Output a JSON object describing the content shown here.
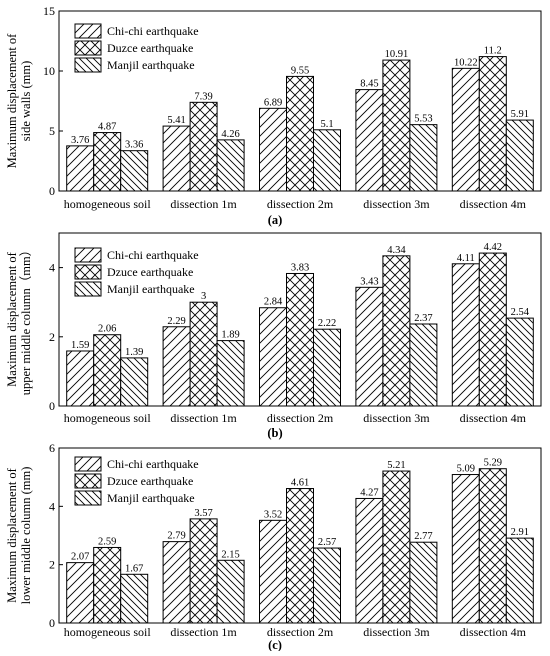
{
  "panels": [
    {
      "caption": "(a)",
      "chart_data": {
        "type": "bar",
        "ylabel": "Maximum displacement of side walls (mm)",
        "ylabel_lines": [
          "Maximum displacement of",
          "side walls (mm)"
        ],
        "xlabel": "",
        "ylim": [
          0,
          15
        ],
        "yticks": [
          0,
          5,
          10,
          15
        ],
        "categories": [
          "homogeneous soil",
          "dissection 1m",
          "dissection 2m",
          "dissection 3m",
          "dissection 4m"
        ],
        "series": [
          {
            "name": "Chi-chi earthquake",
            "values": [
              3.76,
              5.41,
              6.89,
              8.45,
              10.22
            ],
            "labels": [
              "3.76",
              "5.41",
              "6.89",
              "8.45",
              "10.22"
            ]
          },
          {
            "name": "Duzce earthquake",
            "values": [
              4.87,
              7.39,
              9.55,
              10.91,
              11.2
            ],
            "labels": [
              "4.87",
              "7.39",
              "9.55",
              "10.91",
              "11.2"
            ]
          },
          {
            "name": "Manjil earthquake",
            "values": [
              3.36,
              4.26,
              5.1,
              5.53,
              5.91
            ],
            "labels": [
              "3.36",
              "4.26",
              "5.1",
              "5.53",
              "5.91"
            ]
          }
        ],
        "legend": "top-left",
        "grid": false
      }
    },
    {
      "caption": "(b)",
      "chart_data": {
        "type": "bar",
        "ylabel": "Maximum displacement of upper middle column（mm）",
        "ylabel_lines": [
          "Maximum displacement of",
          "upper middle column（mm）"
        ],
        "xlabel": "",
        "ylim": [
          0,
          5
        ],
        "yticks": [
          0,
          2,
          4
        ],
        "categories": [
          "homogeneous soil",
          "dissection 1m",
          "dissection 2m",
          "dissection 3m",
          "dissection 4m"
        ],
        "series": [
          {
            "name": "Chi-chi earthquake",
            "values": [
              1.59,
              2.29,
              2.84,
              3.43,
              4.11
            ],
            "labels": [
              "1.59",
              "2.29",
              "2.84",
              "3.43",
              "4.11"
            ]
          },
          {
            "name": "Dzuce earthquake",
            "values": [
              2.06,
              3,
              3.83,
              4.34,
              4.42
            ],
            "labels": [
              "2.06",
              "3",
              "3.83",
              "4.34",
              "4.42"
            ]
          },
          {
            "name": "Manjil earthquake",
            "values": [
              1.39,
              1.89,
              2.22,
              2.37,
              2.54
            ],
            "labels": [
              "1.39",
              "1.89",
              "2.22",
              "2.37",
              "2.54"
            ]
          }
        ],
        "legend": "top-left",
        "grid": false
      }
    },
    {
      "caption": "(c)",
      "chart_data": {
        "type": "bar",
        "ylabel": "Maximum displacement of lower middle column (mm)",
        "ylabel_lines": [
          "Maximum displacement of",
          "lower middle column (mm)"
        ],
        "xlabel": "",
        "ylim": [
          0,
          6
        ],
        "yticks": [
          0,
          2,
          4,
          6
        ],
        "categories": [
          "homogeneous soil",
          "dissection 1m",
          "dissection 2m",
          "dissection 3m",
          "dissection 4m"
        ],
        "series": [
          {
            "name": "Chi-chi earthquake",
            "values": [
              2.07,
              2.79,
              3.52,
              4.27,
              5.09
            ],
            "labels": [
              "2.07",
              "2.79",
              "3.52",
              "4.27",
              "5.09"
            ]
          },
          {
            "name": "Dzuce earthquake",
            "values": [
              2.59,
              3.57,
              4.61,
              5.21,
              5.29
            ],
            "labels": [
              "2.59",
              "3.57",
              "4.61",
              "5.21",
              "5.29"
            ]
          },
          {
            "name": "Manjil earthquake",
            "values": [
              1.67,
              2.15,
              2.57,
              2.77,
              2.91
            ],
            "labels": [
              "1.67",
              "2.15",
              "2.57",
              "2.77",
              "2.91"
            ]
          }
        ],
        "legend": "top-left",
        "grid": false
      }
    }
  ]
}
